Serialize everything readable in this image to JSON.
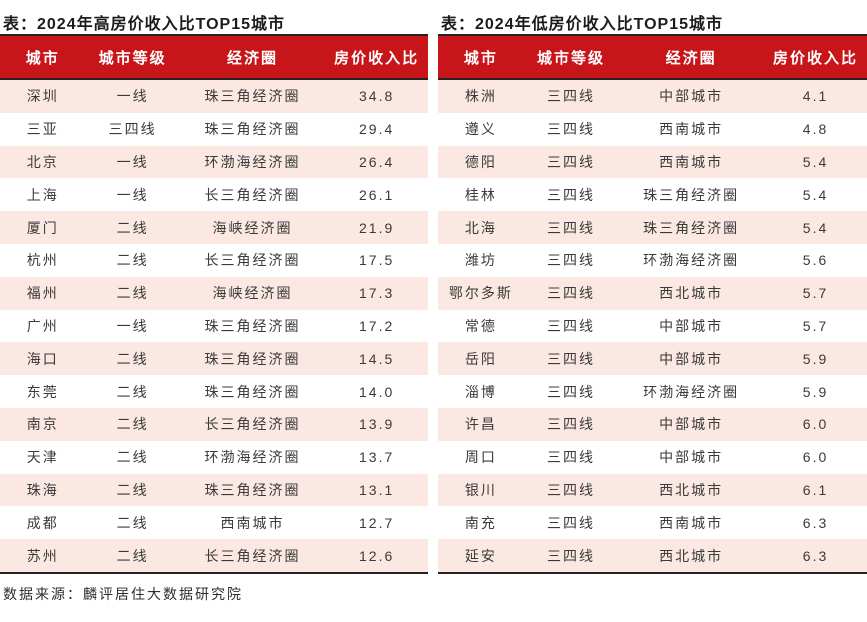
{
  "colors": {
    "header_bg": "#c8151a",
    "alt_row_bg": "#fbe8e3",
    "table_border": "#2b2020",
    "header_text": "#ffffff",
    "body_text": "#3a3a3a"
  },
  "footer": {
    "source_note": "数据来源：麟评居住大数据研究院"
  },
  "chart_data": [
    {
      "type": "table",
      "title": "表：2024年高房价收入比TOP15城市",
      "columns": [
        "城市",
        "城市等级",
        "经济圈",
        "房价收入比"
      ],
      "rows": [
        [
          "深圳",
          "一线",
          "珠三角经济圈",
          "34.8"
        ],
        [
          "三亚",
          "三四线",
          "珠三角经济圈",
          "29.4"
        ],
        [
          "北京",
          "一线",
          "环渤海经济圈",
          "26.4"
        ],
        [
          "上海",
          "一线",
          "长三角经济圈",
          "26.1"
        ],
        [
          "厦门",
          "二线",
          "海峡经济圈",
          "21.9"
        ],
        [
          "杭州",
          "二线",
          "长三角经济圈",
          "17.5"
        ],
        [
          "福州",
          "二线",
          "海峡经济圈",
          "17.3"
        ],
        [
          "广州",
          "一线",
          "珠三角经济圈",
          "17.2"
        ],
        [
          "海口",
          "二线",
          "珠三角经济圈",
          "14.5"
        ],
        [
          "东莞",
          "二线",
          "珠三角经济圈",
          "14.0"
        ],
        [
          "南京",
          "二线",
          "长三角经济圈",
          "13.9"
        ],
        [
          "天津",
          "二线",
          "环渤海经济圈",
          "13.7"
        ],
        [
          "珠海",
          "二线",
          "珠三角经济圈",
          "13.1"
        ],
        [
          "成都",
          "二线",
          "西南城市",
          "12.7"
        ],
        [
          "苏州",
          "二线",
          "长三角经济圈",
          "12.6"
        ]
      ]
    },
    {
      "type": "table",
      "title": "表：2024年低房价收入比TOP15城市",
      "columns": [
        "城市",
        "城市等级",
        "经济圈",
        "房价收入比"
      ],
      "rows": [
        [
          "株洲",
          "三四线",
          "中部城市",
          "4.1"
        ],
        [
          "遵义",
          "三四线",
          "西南城市",
          "4.8"
        ],
        [
          "德阳",
          "三四线",
          "西南城市",
          "5.4"
        ],
        [
          "桂林",
          "三四线",
          "珠三角经济圈",
          "5.4"
        ],
        [
          "北海",
          "三四线",
          "珠三角经济圈",
          "5.4"
        ],
        [
          "潍坊",
          "三四线",
          "环渤海经济圈",
          "5.6"
        ],
        [
          "鄂尔多斯",
          "三四线",
          "西北城市",
          "5.7"
        ],
        [
          "常德",
          "三四线",
          "中部城市",
          "5.7"
        ],
        [
          "岳阳",
          "三四线",
          "中部城市",
          "5.9"
        ],
        [
          "淄博",
          "三四线",
          "环渤海经济圈",
          "5.9"
        ],
        [
          "许昌",
          "三四线",
          "中部城市",
          "6.0"
        ],
        [
          "周口",
          "三四线",
          "中部城市",
          "6.0"
        ],
        [
          "银川",
          "三四线",
          "西北城市",
          "6.1"
        ],
        [
          "南充",
          "三四线",
          "西南城市",
          "6.3"
        ],
        [
          "延安",
          "三四线",
          "西北城市",
          "6.3"
        ]
      ]
    }
  ]
}
